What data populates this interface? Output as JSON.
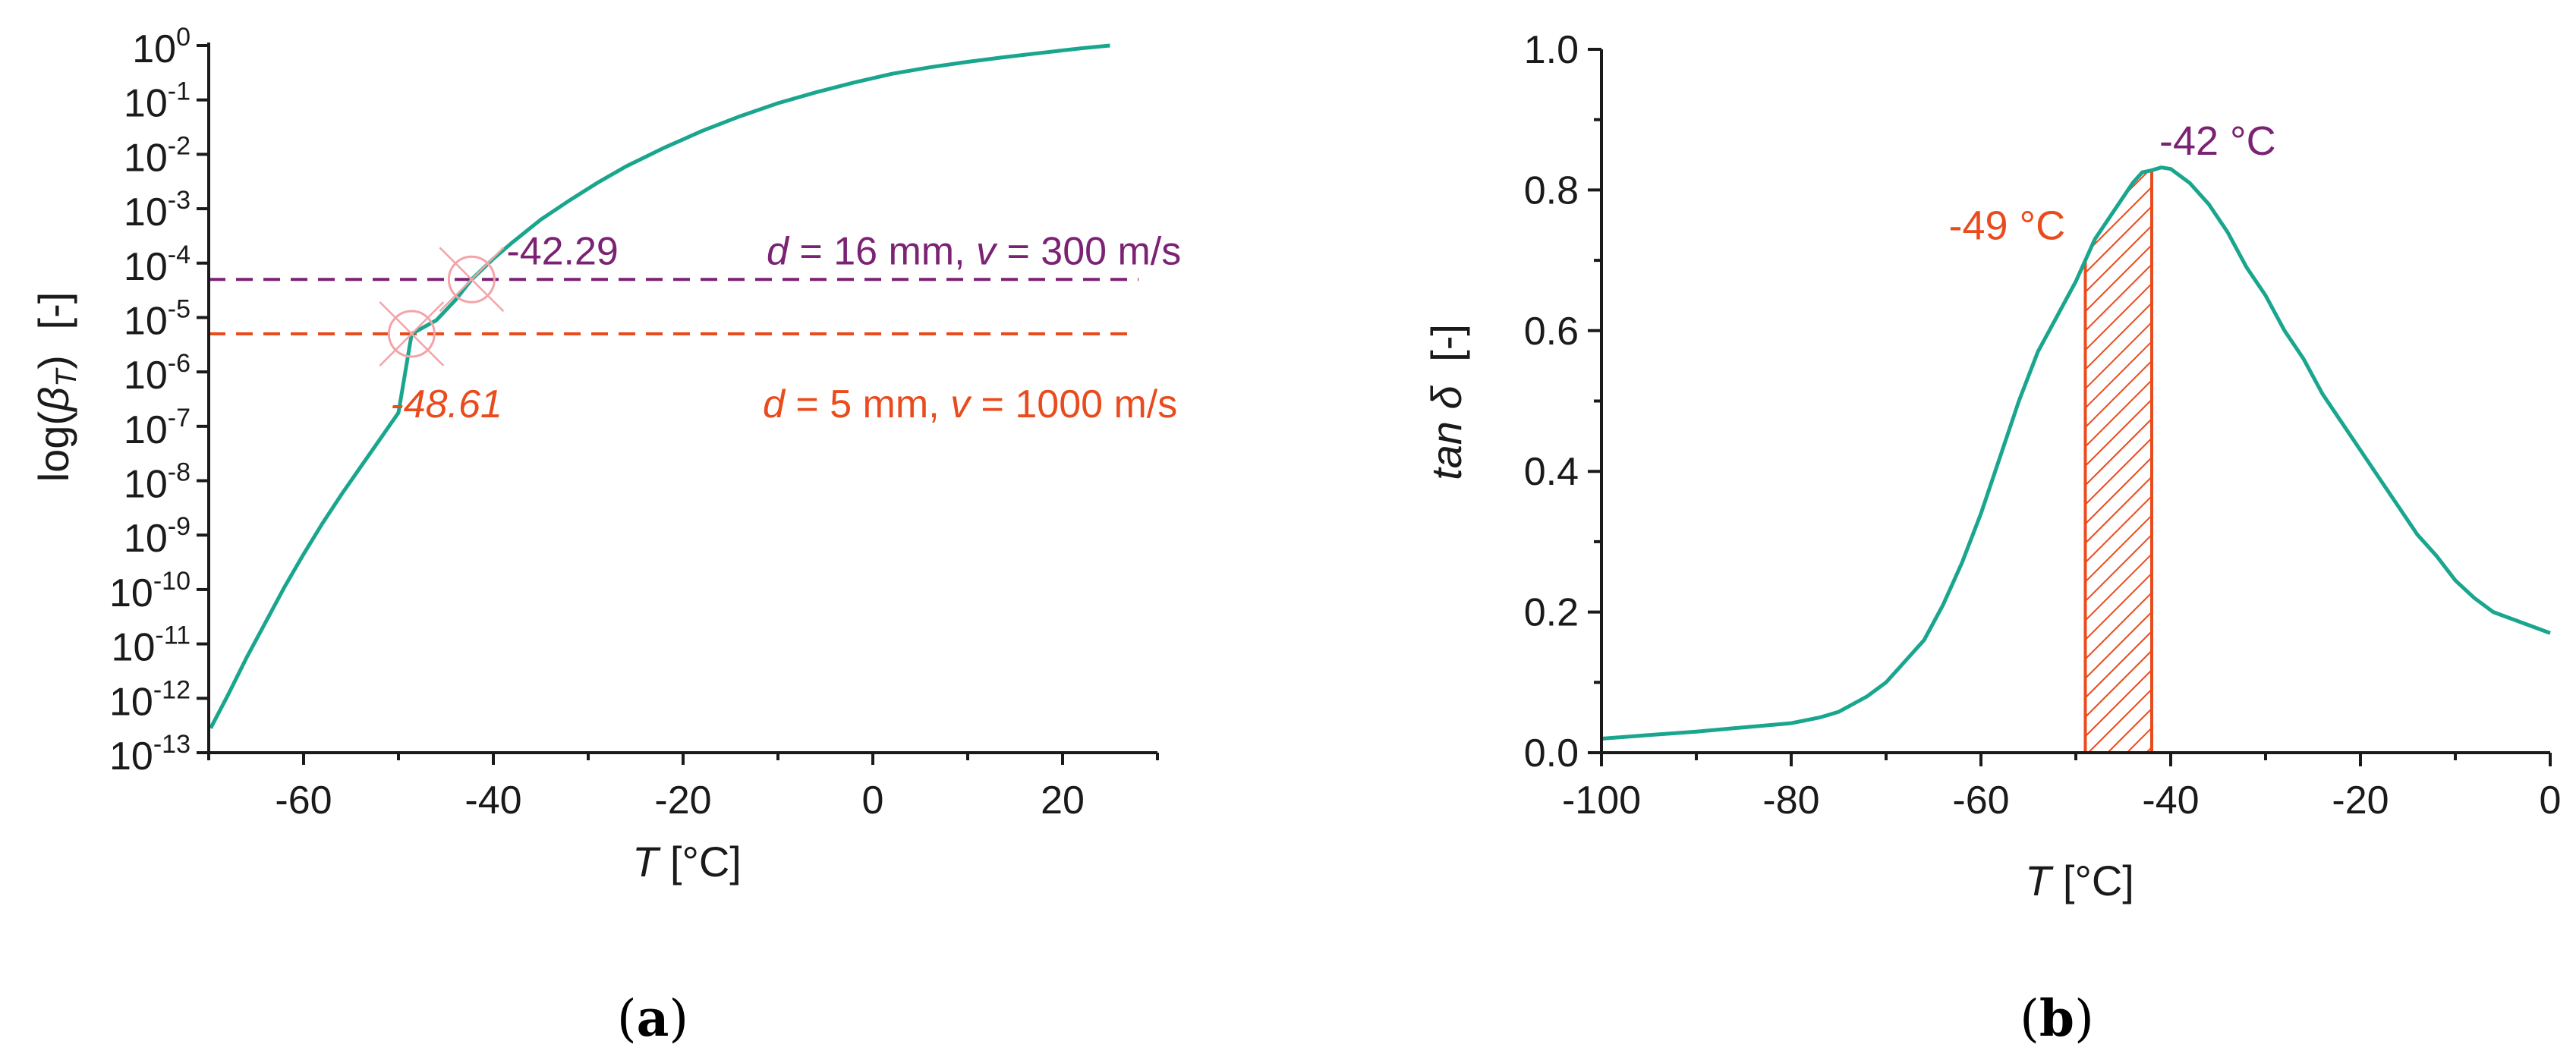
{
  "colors": {
    "curve": "#1aa68e",
    "purple": "#7b2274",
    "orange": "#ea4b1d",
    "marker": "#f4a3a8",
    "axis": "#1a1a1a"
  },
  "chart_data": [
    {
      "id": "a",
      "type": "line",
      "panel_label": "(a)",
      "panel_label_parts": {
        "open": "(",
        "letter": "a",
        "close": ")"
      },
      "xlabel": {
        "var": "T",
        "unit": "[°C]"
      },
      "ylabel": {
        "pre": "log(",
        "var": "β",
        "sub": "T",
        "post": ")",
        "unit": "[-]"
      },
      "y_scale": "log",
      "xlim": [
        -70,
        30
      ],
      "ylim_log10": [
        -13,
        0
      ],
      "x_ticks": [
        -60,
        -40,
        -20,
        0,
        20
      ],
      "x_tick_labels": [
        "-60",
        "-40",
        "-20",
        "0",
        "20"
      ],
      "y_tick_exponents": [
        0,
        -1,
        -2,
        -3,
        -4,
        -5,
        -6,
        -7,
        -8,
        -9,
        -10,
        -11,
        -12,
        -13
      ],
      "y_tick_base": "10",
      "series": [
        {
          "name": "log(βT)",
          "x": [
            -69.8,
            -68,
            -66,
            -64,
            -62,
            -60,
            -58,
            -56,
            -54,
            -52,
            -50,
            -48.61,
            -46,
            -44,
            -42.29,
            -40,
            -38,
            -35,
            -32,
            -29,
            -26,
            -22,
            -18,
            -14,
            -10,
            -6,
            -2,
            2,
            6,
            10,
            14,
            18,
            22,
            25
          ],
          "log10_y": [
            -12.55,
            -11.95,
            -11.25,
            -10.6,
            -9.95,
            -9.35,
            -8.78,
            -8.25,
            -7.75,
            -7.25,
            -6.75,
            -5.3,
            -5.05,
            -4.68,
            -4.3,
            -3.92,
            -3.62,
            -3.2,
            -2.85,
            -2.52,
            -2.22,
            -1.88,
            -1.57,
            -1.3,
            -1.06,
            -0.86,
            -0.68,
            -0.52,
            -0.4,
            -0.3,
            -0.21,
            -0.13,
            -0.05,
            0.0
          ]
        }
      ],
      "reference_lines": [
        {
          "log10_y": -4.3,
          "x_range": [
            -70,
            28
          ],
          "style": "dashed",
          "color_key": "purple"
        },
        {
          "log10_y": -5.3,
          "x_range": [
            -70,
            27
          ],
          "style": "dashed",
          "color_key": "orange"
        }
      ],
      "markers": [
        {
          "x": -42.29,
          "log10_y": -4.3,
          "label": "-42.29",
          "color_key": "purple"
        },
        {
          "x": -48.61,
          "log10_y": -5.3,
          "label": "-48.61",
          "color_key": "orange"
        }
      ],
      "annotations": [
        {
          "d_var": "d",
          "d_value": "= 16 mm,",
          "v_var": "v",
          "v_value": "= 300 m/s",
          "color_key": "purple"
        },
        {
          "d_var": "d",
          "d_value": "= 5 mm,",
          "v_var": "v",
          "v_value": "= 1000 m/s",
          "color_key": "orange"
        }
      ]
    },
    {
      "id": "b",
      "type": "line",
      "panel_label": "(b)",
      "panel_label_parts": {
        "open": "(",
        "letter": "b",
        "close": ")"
      },
      "xlabel": {
        "var": "T",
        "unit": "[°C]"
      },
      "ylabel": {
        "var": "tan δ",
        "unit": "[-]"
      },
      "xlim": [
        -100,
        0
      ],
      "ylim": [
        0.0,
        1.0
      ],
      "x_ticks": [
        -100,
        -80,
        -60,
        -40,
        -20,
        0
      ],
      "x_tick_labels": [
        "-100",
        "-80",
        "-60",
        "-40",
        "-20",
        "0"
      ],
      "y_ticks": [
        0.0,
        0.2,
        0.4,
        0.6,
        0.8,
        1.0
      ],
      "y_tick_labels": [
        "0.0",
        "0.2",
        "0.4",
        "0.6",
        "0.8",
        "1.0"
      ],
      "series": [
        {
          "name": "tan δ",
          "x": [
            -100,
            -95,
            -90,
            -85,
            -80,
            -77,
            -75,
            -72,
            -70,
            -68,
            -66,
            -64,
            -62,
            -60,
            -58,
            -56,
            -54,
            -52,
            -50,
            -49,
            -48,
            -46,
            -44,
            -43,
            -42,
            -41,
            -40,
            -38,
            -36,
            -34,
            -32,
            -30,
            -28,
            -26,
            -24,
            -22,
            -20,
            -18,
            -16,
            -14,
            -12,
            -10,
            -8,
            -6,
            -4,
            -2,
            0
          ],
          "y": [
            0.02,
            0.025,
            0.03,
            0.036,
            0.042,
            0.05,
            0.058,
            0.08,
            0.1,
            0.13,
            0.16,
            0.21,
            0.27,
            0.34,
            0.42,
            0.5,
            0.57,
            0.62,
            0.67,
            0.7,
            0.73,
            0.77,
            0.81,
            0.825,
            0.828,
            0.832,
            0.83,
            0.81,
            0.78,
            0.74,
            0.69,
            0.65,
            0.6,
            0.56,
            0.51,
            0.47,
            0.43,
            0.39,
            0.35,
            0.31,
            0.28,
            0.245,
            0.22,
            0.2,
            0.19,
            0.18,
            0.17
          ]
        }
      ],
      "shaded_region": {
        "x_range": [
          -49,
          -42
        ],
        "pattern": "hatched",
        "color_key": "orange"
      },
      "annotations": [
        {
          "text": "-42 °C",
          "x": -42,
          "color_key": "purple"
        },
        {
          "text": "-49 °C",
          "x": -49,
          "color_key": "orange"
        }
      ]
    }
  ]
}
